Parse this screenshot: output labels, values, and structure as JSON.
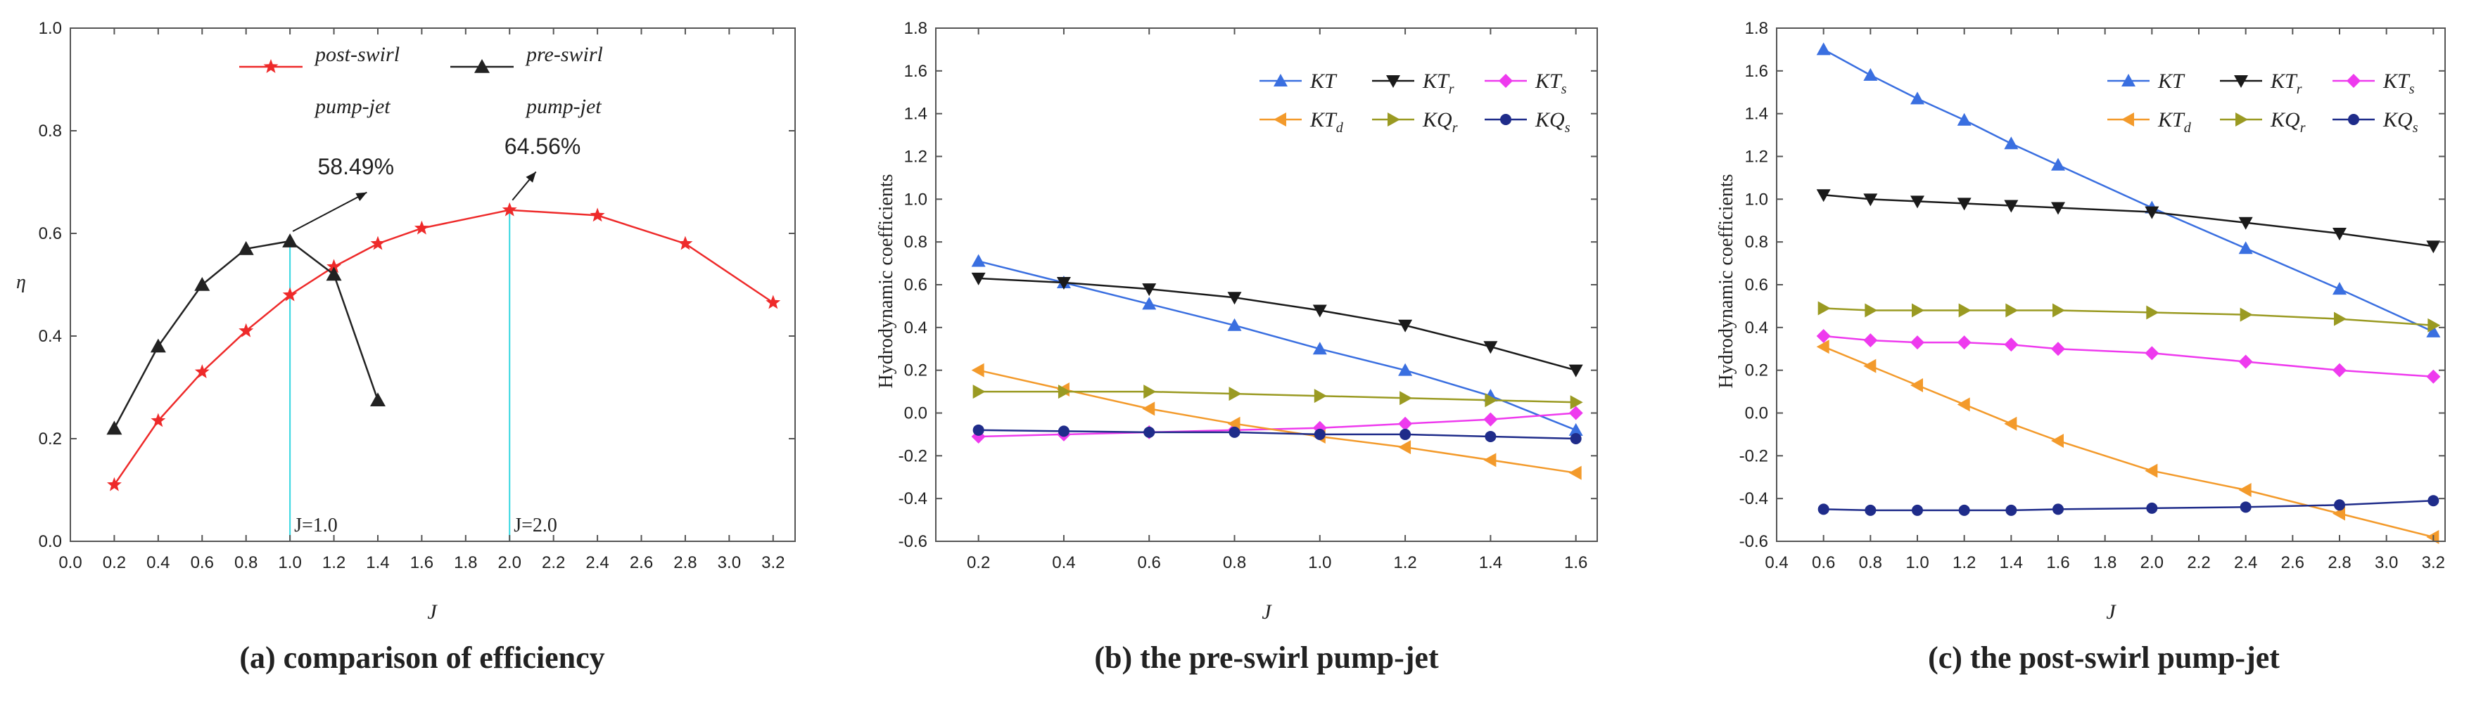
{
  "colors": {
    "axis": "#555555",
    "refline": "#33d6e0"
  },
  "chart_data": [
    {
      "type": "line",
      "id": "a",
      "caption": "(a) comparison of efficiency",
      "xlabel": "J",
      "ylabel": "η",
      "xlim": [
        0.0,
        3.3
      ],
      "ylim": [
        0.0,
        1.0
      ],
      "xticks": [
        "0.0",
        "0.2",
        "0.4",
        "0.6",
        "0.8",
        "1.0",
        "1.2",
        "1.4",
        "1.6",
        "1.8",
        "2.0",
        "2.2",
        "2.4",
        "2.6",
        "2.8",
        "3.0",
        "3.2"
      ],
      "yticks": [
        "0.0",
        "0.2",
        "0.4",
        "0.6",
        "0.8",
        "1.0"
      ],
      "legend_position": "top",
      "series": [
        {
          "name": "post-swirl",
          "name_line2": "pump-jet",
          "color": "#ee2a2a",
          "marker": "star",
          "x": [
            0.2,
            0.4,
            0.6,
            0.8,
            1.0,
            1.2,
            1.4,
            1.6,
            2.0,
            2.4,
            2.8,
            3.2
          ],
          "y": [
            0.11,
            0.235,
            0.33,
            0.41,
            0.48,
            0.535,
            0.58,
            0.61,
            0.6456,
            0.635,
            0.58,
            0.465
          ]
        },
        {
          "name": "pre-swirl",
          "name_line2": "pump-jet",
          "color": "#222222",
          "marker": "triangle",
          "x": [
            0.2,
            0.4,
            0.6,
            0.8,
            1.0,
            1.2,
            1.4
          ],
          "y": [
            0.22,
            0.38,
            0.5,
            0.57,
            0.5849,
            0.52,
            0.275
          ]
        }
      ],
      "annotations": [
        {
          "text": "58.49%",
          "x": 1.3,
          "y": 0.715,
          "arrow_from": [
            1.0,
            0.5849
          ],
          "arrow_to": [
            1.35,
            0.68
          ]
        },
        {
          "text": "64.56%",
          "x": 2.15,
          "y": 0.755,
          "arrow_from": [
            2.0,
            0.6456
          ],
          "arrow_to": [
            2.12,
            0.72
          ]
        }
      ],
      "reference_lines": [
        {
          "x": 1.0,
          "label": "J=1.0"
        },
        {
          "x": 2.0,
          "label": "J=2.0"
        }
      ]
    },
    {
      "type": "line",
      "id": "b",
      "caption": "(b) the pre-swirl pump-jet",
      "xlabel": "J",
      "ylabel": "Hydrodynamic coefficients",
      "xlim": [
        0.1,
        1.65
      ],
      "ylim": [
        -0.6,
        1.8
      ],
      "xticks": [
        "0.2",
        "0.4",
        "0.6",
        "0.8",
        "1.0",
        "1.2",
        "1.4",
        "1.6"
      ],
      "yticks": [
        "-0.6",
        "-0.4",
        "-0.2",
        "0.0",
        "0.2",
        "0.4",
        "0.6",
        "0.8",
        "1.0",
        "1.2",
        "1.4",
        "1.6",
        "1.8"
      ],
      "legend_position": "top-right",
      "series": [
        {
          "name": "KT",
          "sub": "",
          "color": "#3a6fe0",
          "marker": "triangle",
          "x": [
            0.2,
            0.4,
            0.6,
            0.8,
            1.0,
            1.2,
            1.4,
            1.6
          ],
          "y": [
            0.71,
            0.61,
            0.51,
            0.41,
            0.3,
            0.2,
            0.08,
            -0.08
          ]
        },
        {
          "name": "KT",
          "sub": "r",
          "color": "#1a1a1a",
          "marker": "triangle-down",
          "x": [
            0.2,
            0.4,
            0.6,
            0.8,
            1.0,
            1.2,
            1.4,
            1.6
          ],
          "y": [
            0.63,
            0.61,
            0.58,
            0.54,
            0.48,
            0.41,
            0.31,
            0.2
          ]
        },
        {
          "name": "KT",
          "sub": "s",
          "color": "#ee3aee",
          "marker": "diamond",
          "x": [
            0.2,
            0.4,
            0.6,
            0.8,
            1.0,
            1.2,
            1.4,
            1.6
          ],
          "y": [
            -0.11,
            -0.1,
            -0.09,
            -0.08,
            -0.07,
            -0.05,
            -0.03,
            0.0
          ]
        },
        {
          "name": "KT",
          "sub": "d",
          "color": "#f39a2b",
          "marker": "triangle-left",
          "x": [
            0.2,
            0.4,
            0.6,
            0.8,
            1.0,
            1.2,
            1.4,
            1.6
          ],
          "y": [
            0.2,
            0.11,
            0.02,
            -0.05,
            -0.11,
            -0.16,
            -0.22,
            -0.28
          ]
        },
        {
          "name": "KQ",
          "sub": "r",
          "color": "#9a9a22",
          "marker": "triangle-right",
          "x": [
            0.2,
            0.4,
            0.6,
            0.8,
            1.0,
            1.2,
            1.4,
            1.6
          ],
          "y": [
            0.1,
            0.1,
            0.1,
            0.09,
            0.08,
            0.07,
            0.06,
            0.05
          ]
        },
        {
          "name": "KQ",
          "sub": "s",
          "color": "#1f2c8a",
          "marker": "circle",
          "x": [
            0.2,
            0.4,
            0.6,
            0.8,
            1.0,
            1.2,
            1.4,
            1.6
          ],
          "y": [
            -0.08,
            -0.085,
            -0.09,
            -0.09,
            -0.1,
            -0.1,
            -0.11,
            -0.12
          ]
        }
      ]
    },
    {
      "type": "line",
      "id": "c",
      "caption": "(c) the post-swirl pump-jet",
      "xlabel": "J",
      "ylabel": "Hydrodynamic coefficients",
      "xlim": [
        0.4,
        3.25
      ],
      "ylim": [
        -0.6,
        1.8
      ],
      "xticks": [
        "0.4",
        "0.6",
        "0.8",
        "1.0",
        "1.2",
        "1.4",
        "1.6",
        "1.8",
        "2.0",
        "2.2",
        "2.4",
        "2.6",
        "2.8",
        "3.0",
        "3.2"
      ],
      "yticks": [
        "-0.6",
        "-0.4",
        "-0.2",
        "0.0",
        "0.2",
        "0.4",
        "0.6",
        "0.8",
        "1.0",
        "1.2",
        "1.4",
        "1.6",
        "1.8"
      ],
      "legend_position": "top-right",
      "series": [
        {
          "name": "KT",
          "sub": "",
          "color": "#3a6fe0",
          "marker": "triangle",
          "x": [
            0.6,
            0.8,
            1.0,
            1.2,
            1.4,
            1.6,
            2.0,
            2.4,
            2.8,
            3.2
          ],
          "y": [
            1.7,
            1.58,
            1.47,
            1.37,
            1.26,
            1.16,
            0.96,
            0.77,
            0.58,
            0.38
          ]
        },
        {
          "name": "KT",
          "sub": "r",
          "color": "#1a1a1a",
          "marker": "triangle-down",
          "x": [
            0.6,
            0.8,
            1.0,
            1.2,
            1.4,
            1.6,
            2.0,
            2.4,
            2.8,
            3.2
          ],
          "y": [
            1.02,
            1.0,
            0.99,
            0.98,
            0.97,
            0.96,
            0.94,
            0.89,
            0.84,
            0.78
          ]
        },
        {
          "name": "KT",
          "sub": "s",
          "color": "#ee3aee",
          "marker": "diamond",
          "x": [
            0.6,
            0.8,
            1.0,
            1.2,
            1.4,
            1.6,
            2.0,
            2.4,
            2.8,
            3.2
          ],
          "y": [
            0.36,
            0.34,
            0.33,
            0.33,
            0.32,
            0.3,
            0.28,
            0.24,
            0.2,
            0.17
          ]
        },
        {
          "name": "KT",
          "sub": "d",
          "color": "#f39a2b",
          "marker": "triangle-left",
          "x": [
            0.6,
            0.8,
            1.0,
            1.2,
            1.4,
            1.6,
            2.0,
            2.4,
            2.8,
            3.2
          ],
          "y": [
            0.31,
            0.22,
            0.13,
            0.04,
            -0.05,
            -0.13,
            -0.27,
            -0.36,
            -0.47,
            -0.58
          ]
        },
        {
          "name": "KQ",
          "sub": "r",
          "color": "#9a9a22",
          "marker": "triangle-right",
          "x": [
            0.6,
            0.8,
            1.0,
            1.2,
            1.4,
            1.6,
            2.0,
            2.4,
            2.8,
            3.2
          ],
          "y": [
            0.49,
            0.48,
            0.48,
            0.48,
            0.48,
            0.48,
            0.47,
            0.46,
            0.44,
            0.41
          ]
        },
        {
          "name": "KQ",
          "sub": "s",
          "color": "#1f2c8a",
          "marker": "circle",
          "x": [
            0.6,
            0.8,
            1.0,
            1.2,
            1.4,
            1.6,
            2.0,
            2.4,
            2.8,
            3.2
          ],
          "y": [
            -0.45,
            -0.455,
            -0.455,
            -0.455,
            -0.455,
            -0.45,
            -0.445,
            -0.44,
            -0.43,
            -0.41
          ]
        }
      ]
    }
  ]
}
